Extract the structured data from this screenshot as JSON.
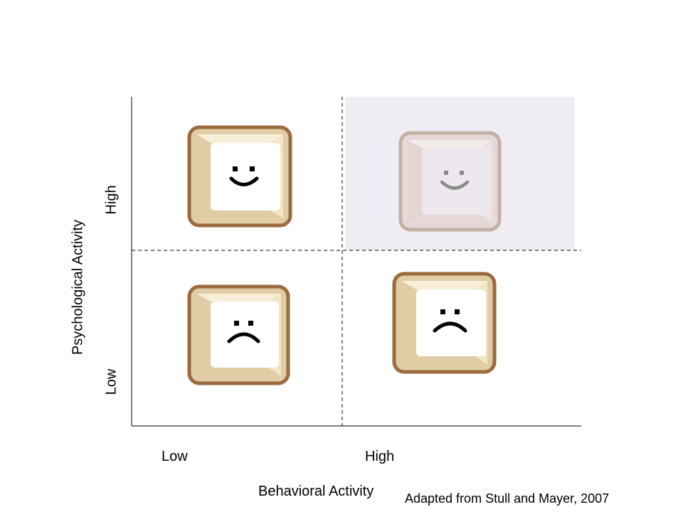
{
  "axes": {
    "x_title": "Behavioral Activity",
    "x_low": "Low",
    "x_high": "High",
    "y_title": "Psychological Activity",
    "y_low": "Low",
    "y_high": "High"
  },
  "citation": "Adapted from Stull and Mayer, 2007",
  "quadrants": [
    {
      "id": "low-behavioral-high-psychological",
      "face": "smile",
      "highlighted": false
    },
    {
      "id": "high-behavioral-high-psychological",
      "face": "smile",
      "highlighted": true
    },
    {
      "id": "low-behavioral-low-psychological",
      "face": "frown",
      "highlighted": false
    },
    {
      "id": "high-behavioral-low-psychological",
      "face": "frown",
      "highlighted": false
    }
  ],
  "colors": {
    "highlight_bg": "#efecf3",
    "key_border": "#9b6a3f",
    "key_border_faded": "#c4b1a4",
    "key_bevel_light": "#f7efd8",
    "key_bevel_dark": "#e0cda5",
    "face_ink": "#000000",
    "face_ink_faded": "#8a8a8a"
  }
}
